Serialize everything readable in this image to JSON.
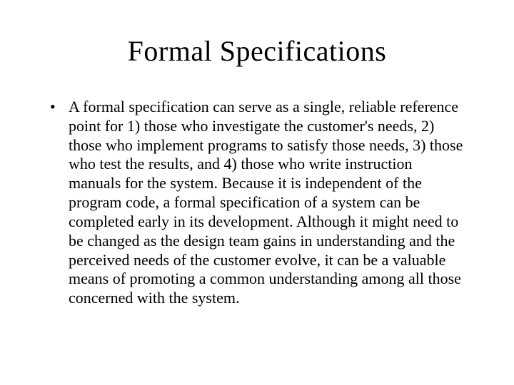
{
  "slide": {
    "background_color": "#ffffff",
    "text_color": "#000000",
    "font_family": "Times New Roman",
    "title": {
      "text": "Formal Specifications",
      "fontsize": 40,
      "align": "center"
    },
    "body": {
      "fontsize": 22,
      "line_height": 1.22,
      "bullets": [
        "A formal specification can serve as a single, reliable reference point for 1) those who investigate the customer's needs, 2) those who implement programs to satisfy those needs, 3) those who test the results, and 4) those who write instruction manuals for the system. Because it is independent of the program code, a formal specification of a system can be completed early in its development. Although it might need to be changed as the design team gains in understanding and the perceived needs of the customer evolve, it can be a valuable means of promoting a common understanding among all those concerned with the system."
      ]
    }
  }
}
